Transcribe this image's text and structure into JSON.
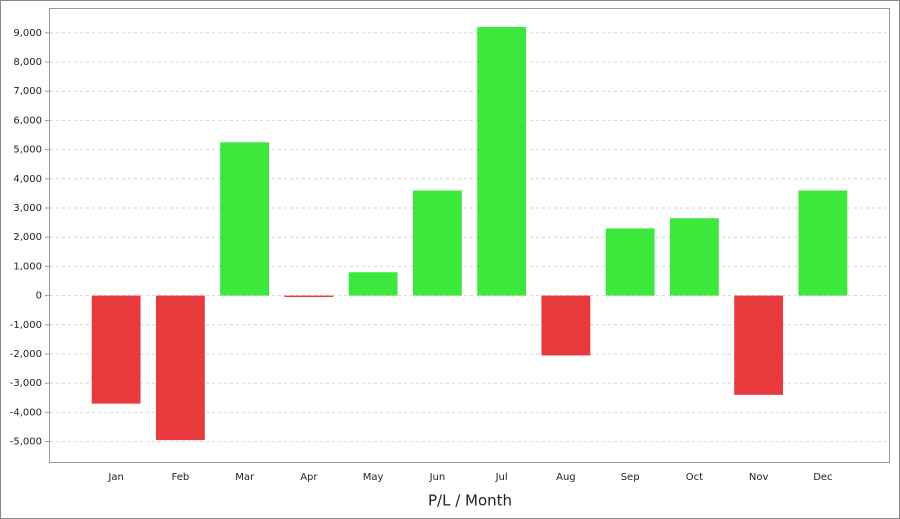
{
  "chart_data": {
    "type": "bar",
    "x_label": "P/L / Month",
    "categories": [
      "Jan",
      "Feb",
      "Mar",
      "Apr",
      "May",
      "Jun",
      "Jul",
      "Aug",
      "Sep",
      "Oct",
      "Nov",
      "Dec"
    ],
    "values": [
      -3700,
      -4950,
      5250,
      -50,
      800,
      3600,
      9200,
      -2050,
      2300,
      2650,
      -3400,
      3600
    ],
    "positive_color": "#3de83d",
    "negative_color": "#e8393c",
    "ylim": [
      -5700,
      9850
    ],
    "yticks": [
      {
        "value": -5000,
        "label": "-5,000"
      },
      {
        "value": -4000,
        "label": "-4,000"
      },
      {
        "value": -3000,
        "label": "-3,000"
      },
      {
        "value": -2000,
        "label": "-2,000"
      },
      {
        "value": -1000,
        "label": "-1,000"
      },
      0,
      {
        "value": 1000,
        "label": "1,000"
      },
      {
        "value": 2000,
        "label": "2,000"
      },
      {
        "value": 3000,
        "label": "3,000"
      },
      {
        "value": 4000,
        "label": "4,000"
      },
      {
        "value": 5000,
        "label": "5,000"
      },
      {
        "value": 6000,
        "label": "6,000"
      },
      {
        "value": 7000,
        "label": "7,000"
      },
      {
        "value": 8000,
        "label": "8,000"
      },
      {
        "value": 9000,
        "label": "9,000"
      }
    ],
    "grid": true
  }
}
